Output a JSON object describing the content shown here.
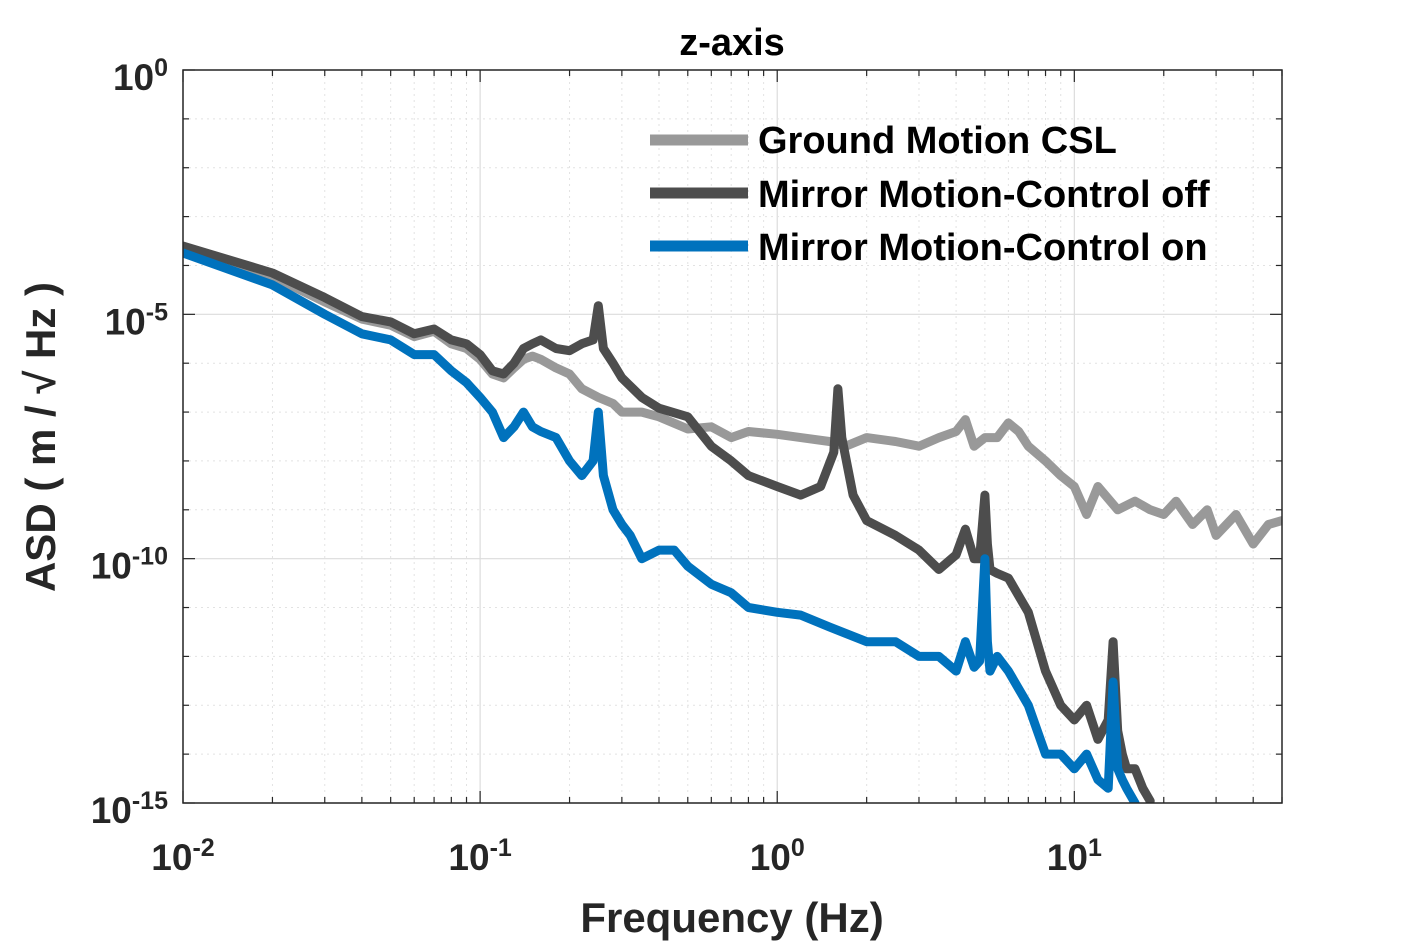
{
  "chart_data": {
    "type": "line",
    "title": "z-axis",
    "xlabel": "Frequency (Hz)",
    "ylabel": "ASD ( m / √ Hz )",
    "xscale": "log",
    "yscale": "log",
    "xlim": [
      0.01,
      50
    ],
    "ylim": [
      1e-15,
      1
    ],
    "grid": true,
    "legend_position": "top-right",
    "x_ticks": [
      {
        "value": 0.01,
        "base": "10",
        "exp": "-2"
      },
      {
        "value": 0.1,
        "base": "10",
        "exp": "-1"
      },
      {
        "value": 1,
        "base": "10",
        "exp": "0"
      },
      {
        "value": 10,
        "base": "10",
        "exp": "1"
      }
    ],
    "y_ticks": [
      {
        "value": 1,
        "base": "10",
        "exp": "0"
      },
      {
        "value": 1e-05,
        "base": "10",
        "exp": "-5"
      },
      {
        "value": 1e-10,
        "base": "10",
        "exp": "-10"
      },
      {
        "value": 1e-15,
        "base": "10",
        "exp": "-15"
      }
    ],
    "series": [
      {
        "name": "Ground Motion CSL",
        "color": "#999999",
        "x": [
          0.01,
          0.02,
          0.03,
          0.04,
          0.05,
          0.06,
          0.07,
          0.08,
          0.09,
          0.1,
          0.11,
          0.12,
          0.13,
          0.14,
          0.15,
          0.16,
          0.18,
          0.2,
          0.22,
          0.25,
          0.28,
          0.3,
          0.35,
          0.4,
          0.5,
          0.6,
          0.7,
          0.8,
          1.0,
          1.2,
          1.5,
          1.7,
          2.0,
          2.5,
          3.0,
          3.5,
          4.0,
          4.3,
          4.6,
          5.0,
          5.5,
          6.0,
          6.5,
          7.0,
          8.0,
          9.0,
          10.0,
          11.0,
          12.0,
          14.0,
          16.0,
          18.0,
          20.0,
          22.0,
          25.0,
          28.0,
          30.0,
          35.0,
          40.0,
          45.0,
          50.0
        ],
        "y": [
          0.0002,
          6e-05,
          1.8e-05,
          8e-06,
          6e-06,
          3.5e-06,
          4.5e-06,
          2.5e-06,
          2e-06,
          1.2e-06,
          6e-07,
          5e-07,
          8e-07,
          1.2e-06,
          1.4e-06,
          1.2e-06,
          8e-07,
          6e-07,
          3e-07,
          2e-07,
          1.5e-07,
          1e-07,
          1e-07,
          8e-08,
          4.5e-08,
          5e-08,
          3e-08,
          4e-08,
          3.5e-08,
          3e-08,
          2.5e-08,
          2e-08,
          3e-08,
          2.5e-08,
          2e-08,
          3e-08,
          4e-08,
          7e-08,
          2e-08,
          3e-08,
          3e-08,
          6e-08,
          4e-08,
          2e-08,
          1e-08,
          5e-09,
          3e-09,
          8e-10,
          3e-09,
          1e-09,
          1.5e-09,
          1e-09,
          8e-10,
          1.5e-09,
          5e-10,
          1e-09,
          3e-10,
          8e-10,
          2e-10,
          5e-10,
          6e-10
        ]
      },
      {
        "name": "Mirror Motion-Control off",
        "color": "#4d4d4d",
        "x": [
          0.01,
          0.02,
          0.03,
          0.04,
          0.05,
          0.06,
          0.07,
          0.08,
          0.09,
          0.1,
          0.11,
          0.12,
          0.13,
          0.14,
          0.15,
          0.16,
          0.18,
          0.2,
          0.22,
          0.24,
          0.25,
          0.26,
          0.28,
          0.3,
          0.35,
          0.4,
          0.5,
          0.6,
          0.7,
          0.8,
          1.0,
          1.2,
          1.4,
          1.55,
          1.6,
          1.65,
          1.8,
          2.0,
          2.5,
          3.0,
          3.5,
          4.0,
          4.3,
          4.6,
          4.8,
          5.0,
          5.1,
          5.2,
          5.5,
          6.0,
          7.0,
          8.0,
          9.0,
          10.0,
          11.0,
          12.0,
          13.0,
          13.5,
          14.0,
          14.5,
          15.0,
          16.0,
          17.0,
          18.0
        ],
        "y": [
          0.00025,
          7e-05,
          2.2e-05,
          9e-06,
          7e-06,
          4e-06,
          5e-06,
          3e-06,
          2.5e-06,
          1.5e-06,
          7e-07,
          6e-07,
          1e-06,
          2e-06,
          2.5e-06,
          3e-06,
          2e-06,
          1.8e-06,
          2.5e-06,
          3e-06,
          1.5e-05,
          2e-06,
          1e-06,
          5e-07,
          2e-07,
          1.2e-07,
          8e-08,
          2e-08,
          1e-08,
          5e-09,
          3e-09,
          2e-09,
          3e-09,
          1.5e-08,
          3e-07,
          3e-08,
          2e-09,
          6e-10,
          3e-10,
          1.5e-10,
          6e-11,
          1.2e-10,
          4e-10,
          1e-10,
          1e-10,
          2e-09,
          2e-10,
          6e-11,
          5e-11,
          4e-11,
          8e-12,
          5e-13,
          1e-13,
          5e-14,
          1e-13,
          2e-14,
          5e-14,
          2e-12,
          3e-14,
          1e-14,
          5e-15,
          5e-15,
          2e-15,
          1.1e-15
        ]
      },
      {
        "name": "Mirror Motion-Control on",
        "color": "#0072bd",
        "x": [
          0.01,
          0.02,
          0.03,
          0.04,
          0.05,
          0.06,
          0.07,
          0.08,
          0.09,
          0.1,
          0.11,
          0.12,
          0.13,
          0.14,
          0.15,
          0.16,
          0.18,
          0.2,
          0.22,
          0.24,
          0.25,
          0.26,
          0.28,
          0.3,
          0.32,
          0.35,
          0.4,
          0.45,
          0.5,
          0.6,
          0.7,
          0.8,
          1.0,
          1.2,
          1.5,
          2.0,
          2.5,
          3.0,
          3.5,
          4.0,
          4.3,
          4.6,
          4.8,
          5.0,
          5.1,
          5.2,
          5.5,
          6.0,
          7.0,
          8.0,
          9.0,
          10.0,
          11.0,
          12.0,
          13.0,
          13.5,
          14.0,
          14.5,
          15.0,
          16.0
        ],
        "y": [
          0.00018,
          4e-05,
          1e-05,
          4e-06,
          3e-06,
          1.5e-06,
          1.5e-06,
          7e-07,
          4e-07,
          2e-07,
          1e-07,
          3e-08,
          5e-08,
          1e-07,
          5e-08,
          4e-08,
          3e-08,
          1e-08,
          5e-09,
          1e-08,
          1e-07,
          5e-09,
          1e-09,
          5e-10,
          3e-10,
          1e-10,
          1.5e-10,
          1.5e-10,
          7e-11,
          3e-11,
          2e-11,
          1e-11,
          8e-12,
          7e-12,
          4e-12,
          2e-12,
          2e-12,
          1e-12,
          1e-12,
          5e-13,
          2e-12,
          6e-13,
          8e-13,
          1e-10,
          2e-12,
          5e-13,
          1e-12,
          5e-13,
          1e-13,
          1e-14,
          1e-14,
          5e-15,
          1e-14,
          3e-15,
          2e-15,
          3e-13,
          5e-15,
          3e-15,
          2e-15,
          1e-15
        ]
      }
    ]
  }
}
